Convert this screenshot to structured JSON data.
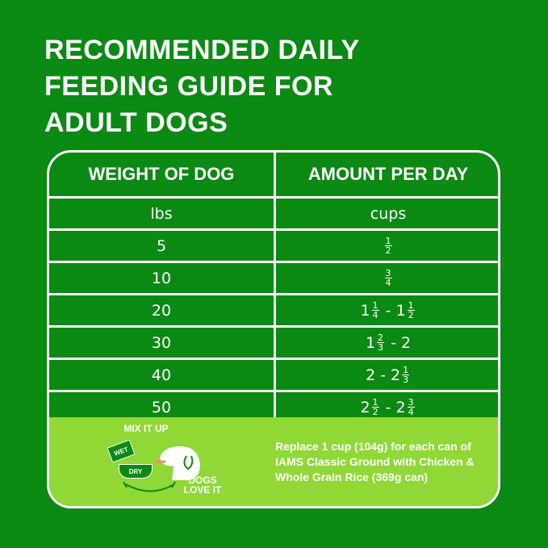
{
  "title_lines": [
    "RECOMMENDED DAILY",
    "FEEDING GUIDE FOR",
    "ADULT DOGS"
  ],
  "table": {
    "headers": [
      "WEIGHT OF DOG",
      "AMOUNT PER DAY"
    ],
    "units": [
      "lbs",
      "cups"
    ],
    "rows": [
      {
        "weight": "5",
        "amount": [
          {
            "n": "1",
            "d": "2"
          }
        ]
      },
      {
        "weight": "10",
        "amount": [
          {
            "n": "3",
            "d": "4"
          }
        ]
      },
      {
        "weight": "20",
        "amount": [
          "1",
          {
            "n": "1",
            "d": "4"
          },
          " - 1",
          {
            "n": "1",
            "d": "2"
          }
        ]
      },
      {
        "weight": "30",
        "amount": [
          "1",
          {
            "n": "2",
            "d": "3"
          },
          " - 2"
        ]
      },
      {
        "weight": "40",
        "amount": [
          "2 - 2",
          {
            "n": "1",
            "d": "3"
          }
        ]
      },
      {
        "weight": "50",
        "amount": [
          "2",
          {
            "n": "1",
            "d": "2"
          },
          " - 2",
          {
            "n": "3",
            "d": "4"
          }
        ]
      }
    ]
  },
  "bottom": {
    "mix_label": "MIX IT UP",
    "wet_label": "WET",
    "dry_label": "DRY",
    "dogs_label": "DOGS LOVE IT",
    "note": "Replace 1 cup (104g) for each can of IAMS Classic Ground with Chicken & Whole Grain Rice (369g can)"
  },
  "colors": {
    "background": "#0b8a13",
    "panel": "#8fd836",
    "text": "#ffffff"
  }
}
